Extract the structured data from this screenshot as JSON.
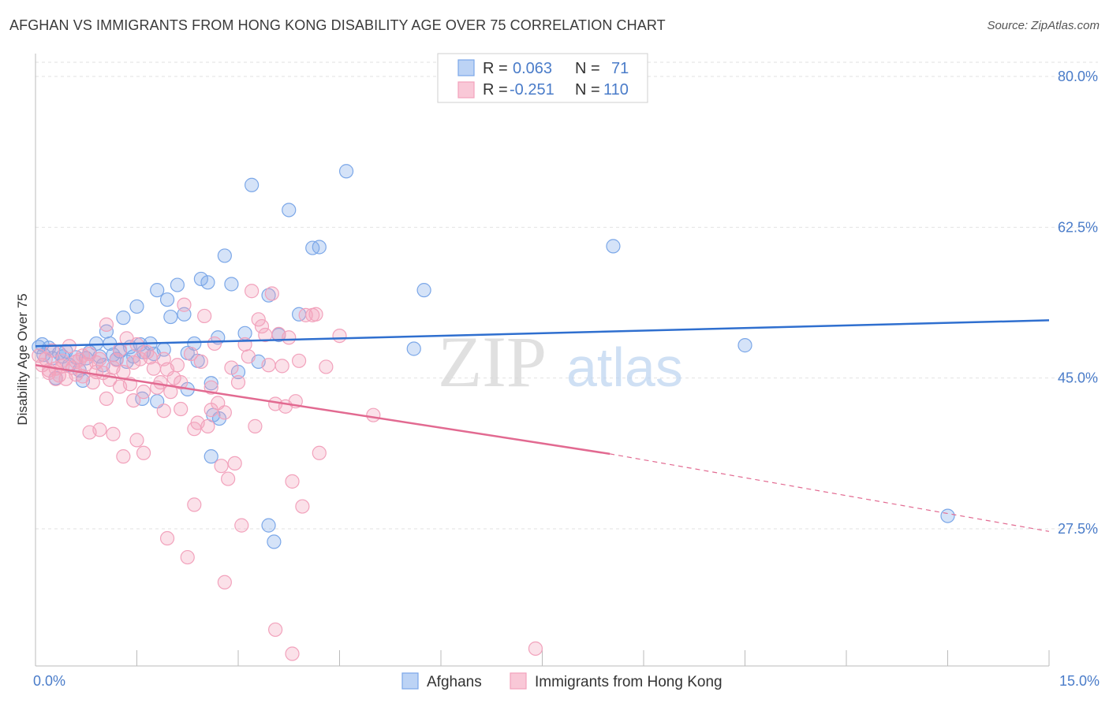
{
  "title": "AFGHAN VS IMMIGRANTS FROM HONG KONG DISABILITY AGE OVER 75 CORRELATION CHART",
  "source": "Source: ZipAtlas.com",
  "watermark": {
    "zip": "ZIP",
    "atlas": "atlas"
  },
  "stats_box": {
    "rows": [
      {
        "r_label": "R =",
        "r_value": "0.063",
        "n_label": "N =",
        "n_value": "71"
      },
      {
        "r_label": "R =",
        "r_value": "-0.251",
        "n_label": "N =",
        "n_value": "110"
      }
    ]
  },
  "chart_data": {
    "type": "scatter",
    "title": "AFGHAN VS IMMIGRANTS FROM HONG KONG DISABILITY AGE OVER 75 CORRELATION CHART",
    "xlabel": "",
    "ylabel": "Disability Age Over 75",
    "xlim": [
      0,
      15
    ],
    "ylim": [
      10,
      84
    ],
    "x_tick_labels": [
      {
        "value": 0,
        "label": "0.0%"
      },
      {
        "value": 15,
        "label": "15.0%"
      }
    ],
    "y_tick_labels": [
      {
        "value": 80,
        "label": "80.0%"
      },
      {
        "value": 62.5,
        "label": "62.5%"
      },
      {
        "value": 45,
        "label": "45.0%"
      },
      {
        "value": 27.5,
        "label": "27.5%"
      }
    ],
    "grid": true,
    "legend_position": "bottom-center",
    "series": [
      {
        "name": "Afghans",
        "color": "#7ba7e8",
        "line_color": "#2f6fcf",
        "r": 0.063,
        "n": 71,
        "trend": {
          "x": [
            0,
            15
          ],
          "y": [
            48.7,
            51.7
          ]
        },
        "points": [
          [
            0.05,
            48.6
          ],
          [
            0.1,
            48.9
          ],
          [
            0.12,
            47.7
          ],
          [
            0.2,
            48.5
          ],
          [
            0.25,
            47.3
          ],
          [
            0.3,
            45.0
          ],
          [
            0.35,
            47.9
          ],
          [
            0.4,
            47.5
          ],
          [
            0.45,
            48.1
          ],
          [
            0.5,
            46.5
          ],
          [
            0.6,
            47.4
          ],
          [
            0.65,
            45.9
          ],
          [
            0.7,
            44.7
          ],
          [
            0.75,
            47.3
          ],
          [
            0.8,
            48.0
          ],
          [
            0.9,
            49.0
          ],
          [
            0.95,
            47.5
          ],
          [
            1.0,
            46.5
          ],
          [
            1.05,
            50.4
          ],
          [
            1.1,
            49.0
          ],
          [
            1.15,
            47.7
          ],
          [
            1.2,
            47.2
          ],
          [
            1.25,
            48.1
          ],
          [
            1.3,
            52.0
          ],
          [
            1.35,
            46.9
          ],
          [
            1.4,
            48.6
          ],
          [
            1.45,
            47.5
          ],
          [
            1.5,
            53.3
          ],
          [
            1.55,
            48.9
          ],
          [
            1.6,
            48.0
          ],
          [
            1.7,
            49.0
          ],
          [
            1.75,
            47.8
          ],
          [
            1.8,
            55.2
          ],
          [
            1.9,
            48.3
          ],
          [
            1.95,
            54.1
          ],
          [
            2.0,
            52.1
          ],
          [
            2.1,
            55.8
          ],
          [
            2.2,
            52.4
          ],
          [
            2.25,
            47.9
          ],
          [
            2.35,
            49.0
          ],
          [
            2.4,
            47.0
          ],
          [
            2.45,
            56.5
          ],
          [
            2.55,
            56.1
          ],
          [
            2.6,
            44.4
          ],
          [
            2.7,
            49.7
          ],
          [
            2.8,
            59.2
          ],
          [
            2.9,
            55.9
          ],
          [
            3.0,
            45.7
          ],
          [
            3.1,
            50.2
          ],
          [
            3.2,
            67.4
          ],
          [
            3.3,
            46.9
          ],
          [
            3.45,
            54.6
          ],
          [
            3.6,
            50.0
          ],
          [
            3.75,
            64.5
          ],
          [
            3.9,
            52.4
          ],
          [
            4.1,
            60.1
          ],
          [
            4.2,
            60.2
          ],
          [
            4.6,
            69.0
          ],
          [
            5.6,
            48.4
          ],
          [
            5.75,
            55.2
          ],
          [
            8.55,
            60.3
          ],
          [
            10.5,
            48.8
          ],
          [
            13.5,
            29.0
          ],
          [
            1.58,
            42.6
          ],
          [
            1.8,
            42.3
          ],
          [
            2.25,
            43.7
          ],
          [
            2.63,
            40.7
          ],
          [
            2.72,
            40.3
          ],
          [
            2.6,
            35.9
          ],
          [
            3.45,
            27.9
          ],
          [
            3.53,
            26.0
          ]
        ]
      },
      {
        "name": "Immigrants from Hong Kong",
        "color": "#f2a2bc",
        "line_color": "#e26a91",
        "r": -0.251,
        "n": 110,
        "trend": {
          "x": [
            0,
            8.5
          ],
          "y": [
            46.5,
            36.2
          ]
        },
        "trend_dashed": {
          "x": [
            8.5,
            15
          ],
          "y": [
            36.2,
            27.2
          ]
        },
        "points": [
          [
            0.05,
            47.6
          ],
          [
            0.1,
            46.5
          ],
          [
            0.15,
            47.2
          ],
          [
            0.2,
            45.9
          ],
          [
            0.25,
            48.2
          ],
          [
            0.3,
            46.1
          ],
          [
            0.35,
            45.3
          ],
          [
            0.4,
            47.0
          ],
          [
            0.45,
            44.9
          ],
          [
            0.5,
            48.7
          ],
          [
            0.55,
            46.2
          ],
          [
            0.6,
            45.4
          ],
          [
            0.65,
            47.1
          ],
          [
            0.7,
            45.2
          ],
          [
            0.75,
            46.6
          ],
          [
            0.8,
            47.8
          ],
          [
            0.85,
            44.5
          ],
          [
            0.9,
            46.8
          ],
          [
            0.95,
            47.2
          ],
          [
            1.0,
            45.6
          ],
          [
            1.05,
            51.2
          ],
          [
            1.1,
            44.8
          ],
          [
            1.15,
            46.2
          ],
          [
            1.2,
            47.1
          ],
          [
            1.25,
            48.3
          ],
          [
            1.3,
            45.7
          ],
          [
            1.35,
            49.6
          ],
          [
            1.4,
            44.3
          ],
          [
            1.45,
            46.8
          ],
          [
            1.5,
            48.9
          ],
          [
            1.55,
            47.2
          ],
          [
            1.6,
            43.4
          ],
          [
            1.65,
            48.0
          ],
          [
            1.7,
            47.4
          ],
          [
            1.75,
            46.1
          ],
          [
            1.8,
            43.9
          ],
          [
            1.85,
            44.5
          ],
          [
            1.9,
            47.2
          ],
          [
            1.95,
            46.0
          ],
          [
            2.0,
            43.4
          ],
          [
            2.05,
            45.0
          ],
          [
            2.1,
            46.5
          ],
          [
            2.15,
            44.5
          ],
          [
            2.2,
            53.5
          ],
          [
            2.3,
            47.8
          ],
          [
            2.35,
            39.1
          ],
          [
            2.4,
            39.8
          ],
          [
            2.45,
            46.9
          ],
          [
            2.5,
            52.2
          ],
          [
            2.55,
            39.4
          ],
          [
            2.6,
            43.9
          ],
          [
            2.65,
            49.0
          ],
          [
            2.7,
            42.1
          ],
          [
            2.75,
            34.8
          ],
          [
            2.8,
            41.0
          ],
          [
            2.85,
            33.3
          ],
          [
            2.9,
            46.2
          ],
          [
            2.95,
            35.1
          ],
          [
            3.0,
            44.5
          ],
          [
            3.05,
            27.9
          ],
          [
            3.1,
            48.9
          ],
          [
            3.15,
            47.5
          ],
          [
            3.2,
            55.1
          ],
          [
            3.25,
            39.4
          ],
          [
            3.3,
            51.8
          ],
          [
            3.35,
            51.0
          ],
          [
            3.4,
            50.0
          ],
          [
            3.45,
            46.5
          ],
          [
            3.5,
            54.8
          ],
          [
            3.55,
            42.0
          ],
          [
            3.6,
            50.1
          ],
          [
            3.65,
            46.4
          ],
          [
            3.7,
            41.7
          ],
          [
            3.75,
            49.7
          ],
          [
            3.8,
            33.0
          ],
          [
            3.85,
            42.3
          ],
          [
            3.9,
            47.0
          ],
          [
            3.95,
            30.1
          ],
          [
            4.0,
            52.3
          ],
          [
            4.1,
            52.3
          ],
          [
            4.15,
            52.4
          ],
          [
            4.2,
            36.3
          ],
          [
            4.3,
            46.3
          ],
          [
            4.5,
            49.9
          ],
          [
            5.0,
            40.7
          ],
          [
            1.15,
            38.5
          ],
          [
            1.3,
            35.9
          ],
          [
            1.5,
            37.8
          ],
          [
            1.6,
            36.3
          ],
          [
            1.95,
            26.4
          ],
          [
            2.25,
            24.2
          ],
          [
            2.35,
            30.3
          ],
          [
            2.8,
            21.3
          ],
          [
            3.55,
            15.8
          ],
          [
            3.8,
            13.0
          ],
          [
            7.4,
            13.6
          ],
          [
            0.8,
            38.7
          ],
          [
            0.95,
            39.0
          ],
          [
            1.05,
            42.6
          ],
          [
            1.25,
            44.0
          ],
          [
            1.45,
            42.4
          ],
          [
            1.9,
            41.2
          ],
          [
            2.15,
            41.4
          ],
          [
            2.6,
            41.3
          ],
          [
            0.3,
            44.9
          ],
          [
            0.6,
            46.9
          ],
          [
            0.2,
            45.6
          ],
          [
            0.4,
            46.4
          ],
          [
            0.7,
            47.6
          ],
          [
            0.9,
            45.7
          ]
        ]
      }
    ]
  },
  "legend": {
    "items": [
      {
        "label": "Afghans",
        "color": "#7ba7e8"
      },
      {
        "label": "Immigrants from Hong Kong",
        "color": "#f2a2bc"
      }
    ]
  },
  "colors": {
    "blue_text": "#4a7cc9",
    "grid": "#e2e2e2",
    "axis": "#bbbbbb"
  }
}
